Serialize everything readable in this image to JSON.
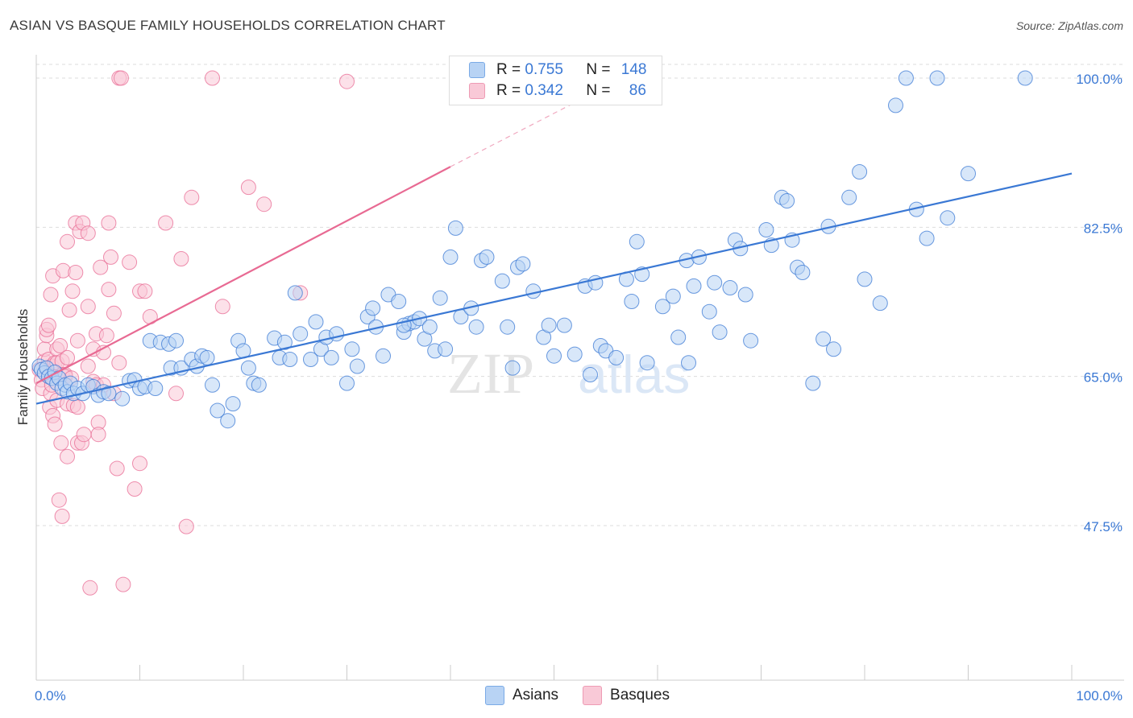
{
  "title": "ASIAN VS BASQUE FAMILY HOUSEHOLDS CORRELATION CHART",
  "source": "Source: ZipAtlas.com",
  "legend": {
    "rows": [
      {
        "r_label": "R =",
        "r_value": "0.755",
        "n_label": "N =",
        "n_value": "148"
      },
      {
        "r_label": "R =",
        "r_value": "0.342",
        "n_label": "N =",
        "n_value": "86"
      }
    ]
  },
  "bottom_legend": {
    "asians": "Asians",
    "basques": "Basques"
  },
  "watermark": "ZIPatlas",
  "colors": {
    "asian": "#3a78d4",
    "asian_fill": "#b8d3f4",
    "basque": "#e86a93",
    "basque_fill": "#f9c9d7",
    "tick_label": "#3a78d4"
  },
  "chart_data": {
    "type": "scatter",
    "title": "ASIAN VS BASQUE FAMILY HOUSEHOLDS CORRELATION CHART",
    "xlabel": "",
    "ylabel": "Family Households",
    "xlim": [
      0,
      100
    ],
    "ylim": [
      30,
      101.5
    ],
    "x_tick_labels": [
      "0.0%",
      "100.0%"
    ],
    "y_ticks": [
      47.5,
      65.0,
      82.5,
      100.0
    ],
    "y_tick_labels": [
      "47.5%",
      "65.0%",
      "82.5%",
      "100.0%"
    ],
    "grid": true,
    "series": [
      {
        "name": "Asians",
        "R": 0.755,
        "N": 148,
        "trend": {
          "x0": 0,
          "y0": 61.8,
          "x1": 100,
          "y1": 88.8
        },
        "points": [
          [
            0.3,
            66.2
          ],
          [
            0.5,
            65.8
          ],
          [
            0.8,
            65.4
          ],
          [
            1.0,
            66.0
          ],
          [
            1.2,
            65.0
          ],
          [
            1.5,
            64.8
          ],
          [
            1.8,
            65.5
          ],
          [
            2.0,
            64.2
          ],
          [
            2.2,
            64.8
          ],
          [
            2.5,
            63.6
          ],
          [
            2.8,
            64.0
          ],
          [
            3.0,
            63.2
          ],
          [
            3.3,
            64.2
          ],
          [
            3.6,
            63.0
          ],
          [
            4.0,
            63.6
          ],
          [
            4.5,
            63.0
          ],
          [
            5.0,
            64.0
          ],
          [
            5.5,
            63.8
          ],
          [
            6.0,
            62.8
          ],
          [
            6.5,
            63.2
          ],
          [
            7.0,
            63.0
          ],
          [
            8.3,
            62.4
          ],
          [
            9.0,
            64.5
          ],
          [
            9.5,
            64.6
          ],
          [
            10.0,
            63.6
          ],
          [
            10.5,
            63.8
          ],
          [
            11.5,
            63.6
          ],
          [
            11.0,
            69.2
          ],
          [
            12.0,
            69.0
          ],
          [
            12.8,
            68.8
          ],
          [
            13.0,
            66.0
          ],
          [
            13.5,
            69.2
          ],
          [
            14.0,
            66.0
          ],
          [
            15.0,
            67.0
          ],
          [
            15.5,
            66.2
          ],
          [
            16.0,
            67.4
          ],
          [
            16.5,
            67.2
          ],
          [
            17.0,
            64.0
          ],
          [
            17.5,
            61.0
          ],
          [
            18.5,
            59.8
          ],
          [
            19.0,
            61.8
          ],
          [
            19.5,
            69.2
          ],
          [
            20.0,
            68.0
          ],
          [
            20.5,
            66.0
          ],
          [
            21.0,
            64.2
          ],
          [
            21.5,
            64.0
          ],
          [
            23.0,
            69.5
          ],
          [
            23.5,
            67.2
          ],
          [
            24.0,
            69.0
          ],
          [
            24.5,
            67.0
          ],
          [
            25.0,
            74.8
          ],
          [
            25.5,
            70.0
          ],
          [
            26.5,
            67.0
          ],
          [
            27.0,
            71.4
          ],
          [
            27.5,
            68.2
          ],
          [
            28.0,
            69.6
          ],
          [
            28.5,
            67.2
          ],
          [
            29.0,
            70.0
          ],
          [
            30.0,
            64.2
          ],
          [
            30.5,
            68.2
          ],
          [
            31.0,
            66.2
          ],
          [
            32.0,
            72.0
          ],
          [
            32.5,
            73.0
          ],
          [
            32.8,
            70.8
          ],
          [
            33.5,
            67.4
          ],
          [
            34.0,
            74.6
          ],
          [
            35.0,
            73.8
          ],
          [
            35.5,
            70.2
          ],
          [
            36.0,
            71.2
          ],
          [
            36.5,
            71.4
          ],
          [
            37.0,
            71.8
          ],
          [
            37.5,
            69.4
          ],
          [
            38.0,
            70.8
          ],
          [
            38.5,
            68.0
          ],
          [
            39.0,
            74.2
          ],
          [
            35.5,
            71.0
          ],
          [
            39.5,
            68.2
          ],
          [
            40.0,
            79.0
          ],
          [
            40.5,
            82.4
          ],
          [
            41.0,
            72.0
          ],
          [
            42.0,
            73.0
          ],
          [
            42.5,
            70.8
          ],
          [
            43.0,
            78.6
          ],
          [
            43.5,
            79.0
          ],
          [
            45.0,
            76.2
          ],
          [
            45.5,
            70.8
          ],
          [
            46.0,
            66.0
          ],
          [
            46.5,
            77.8
          ],
          [
            47.0,
            78.2
          ],
          [
            48.0,
            75.0
          ],
          [
            49.0,
            69.6
          ],
          [
            49.5,
            71.0
          ],
          [
            50.0,
            67.4
          ],
          [
            51.0,
            71.0
          ],
          [
            52.0,
            67.6
          ],
          [
            53.0,
            75.6
          ],
          [
            53.5,
            65.2
          ],
          [
            54.0,
            76.0
          ],
          [
            54.5,
            68.6
          ],
          [
            55.0,
            68.0
          ],
          [
            56.0,
            67.2
          ],
          [
            57.0,
            76.4
          ],
          [
            57.5,
            73.8
          ],
          [
            58.0,
            80.8
          ],
          [
            58.5,
            77.0
          ],
          [
            59.0,
            66.6
          ],
          [
            60.5,
            73.2
          ],
          [
            61.5,
            74.4
          ],
          [
            62.0,
            69.6
          ],
          [
            62.8,
            78.6
          ],
          [
            63.0,
            66.6
          ],
          [
            63.5,
            75.6
          ],
          [
            64.0,
            79.0
          ],
          [
            65.0,
            72.6
          ],
          [
            65.5,
            76.0
          ],
          [
            66.0,
            70.2
          ],
          [
            67.0,
            75.4
          ],
          [
            67.5,
            81.0
          ],
          [
            68.0,
            80.0
          ],
          [
            68.5,
            74.6
          ],
          [
            69.0,
            69.2
          ],
          [
            70.5,
            82.2
          ],
          [
            71.0,
            80.4
          ],
          [
            72.0,
            86.0
          ],
          [
            72.5,
            85.6
          ],
          [
            73.0,
            81.0
          ],
          [
            73.5,
            77.8
          ],
          [
            74.0,
            77.2
          ],
          [
            75.0,
            64.2
          ],
          [
            76.5,
            82.6
          ],
          [
            76.0,
            69.4
          ],
          [
            77.0,
            68.2
          ],
          [
            78.5,
            86.0
          ],
          [
            79.5,
            89.0
          ],
          [
            80.0,
            76.4
          ],
          [
            81.5,
            73.6
          ],
          [
            83.0,
            96.8
          ],
          [
            84.0,
            100.0
          ],
          [
            85.0,
            84.6
          ],
          [
            86.0,
            81.2
          ],
          [
            87.0,
            100.0
          ],
          [
            88.0,
            83.6
          ],
          [
            90.0,
            88.8
          ],
          [
            95.5,
            100.0
          ]
        ]
      },
      {
        "name": "Basques",
        "R": 0.342,
        "N": 86,
        "trend": {
          "x0": 0,
          "y0": 64.2,
          "x1": 40,
          "y1": 89.6,
          "dashed_to_x": 55,
          "dashed_to_y": 99.0
        },
        "points": [
          [
            0.3,
            65.8
          ],
          [
            0.5,
            64.6
          ],
          [
            0.6,
            63.6
          ],
          [
            0.8,
            66.8
          ],
          [
            0.8,
            68.2
          ],
          [
            1.0,
            69.8
          ],
          [
            1.0,
            70.5
          ],
          [
            1.2,
            67.0
          ],
          [
            1.2,
            71.0
          ],
          [
            1.3,
            61.4
          ],
          [
            1.3,
            65.2
          ],
          [
            1.4,
            63.0
          ],
          [
            1.4,
            74.6
          ],
          [
            1.5,
            66.2
          ],
          [
            1.5,
            64.0
          ],
          [
            1.6,
            60.4
          ],
          [
            1.6,
            76.8
          ],
          [
            1.8,
            66.6
          ],
          [
            1.8,
            59.4
          ],
          [
            2.0,
            68.2
          ],
          [
            2.0,
            66.6
          ],
          [
            2.0,
            62.2
          ],
          [
            2.2,
            64.8
          ],
          [
            2.2,
            50.5
          ],
          [
            2.3,
            68.6
          ],
          [
            2.4,
            57.2
          ],
          [
            2.5,
            66.8
          ],
          [
            2.5,
            65.2
          ],
          [
            2.5,
            48.6
          ],
          [
            2.6,
            77.4
          ],
          [
            2.8,
            65.2
          ],
          [
            2.8,
            65.0
          ],
          [
            3.0,
            67.2
          ],
          [
            3.0,
            80.8
          ],
          [
            3.0,
            61.8
          ],
          [
            3.0,
            55.6
          ],
          [
            3.2,
            72.8
          ],
          [
            3.4,
            64.8
          ],
          [
            3.5,
            75.0
          ],
          [
            3.6,
            61.6
          ],
          [
            3.8,
            77.2
          ],
          [
            3.8,
            83.0
          ],
          [
            4.0,
            57.2
          ],
          [
            4.0,
            61.4
          ],
          [
            4.0,
            69.2
          ],
          [
            4.2,
            82.0
          ],
          [
            4.4,
            57.2
          ],
          [
            4.5,
            83.0
          ],
          [
            4.6,
            58.2
          ],
          [
            5.0,
            81.8
          ],
          [
            5.0,
            73.2
          ],
          [
            5.0,
            66.2
          ],
          [
            5.2,
            40.2
          ],
          [
            5.5,
            68.2
          ],
          [
            5.5,
            64.4
          ],
          [
            5.8,
            64.0
          ],
          [
            5.8,
            70.0
          ],
          [
            6.0,
            59.6
          ],
          [
            6.0,
            58.2
          ],
          [
            6.2,
            77.8
          ],
          [
            6.5,
            64.0
          ],
          [
            6.5,
            67.8
          ],
          [
            6.8,
            69.8
          ],
          [
            7.0,
            75.2
          ],
          [
            7.0,
            83.0
          ],
          [
            7.2,
            79.0
          ],
          [
            7.5,
            72.4
          ],
          [
            7.5,
            63.0
          ],
          [
            7.8,
            54.2
          ],
          [
            8.0,
            66.6
          ],
          [
            8.0,
            100.0
          ],
          [
            8.2,
            100.0
          ],
          [
            8.4,
            40.6
          ],
          [
            9.0,
            78.4
          ],
          [
            9.5,
            51.8
          ],
          [
            10.0,
            75.0
          ],
          [
            10.0,
            54.8
          ],
          [
            10.5,
            75.0
          ],
          [
            11.0,
            72.0
          ],
          [
            12.5,
            83.0
          ],
          [
            13.5,
            63.0
          ],
          [
            14.0,
            78.8
          ],
          [
            14.5,
            47.4
          ],
          [
            15.0,
            86.0
          ],
          [
            17.0,
            100.0
          ],
          [
            18.0,
            73.2
          ],
          [
            20.5,
            87.2
          ],
          [
            22.0,
            85.2
          ],
          [
            25.5,
            74.8
          ],
          [
            30.0,
            99.6
          ]
        ]
      }
    ]
  }
}
